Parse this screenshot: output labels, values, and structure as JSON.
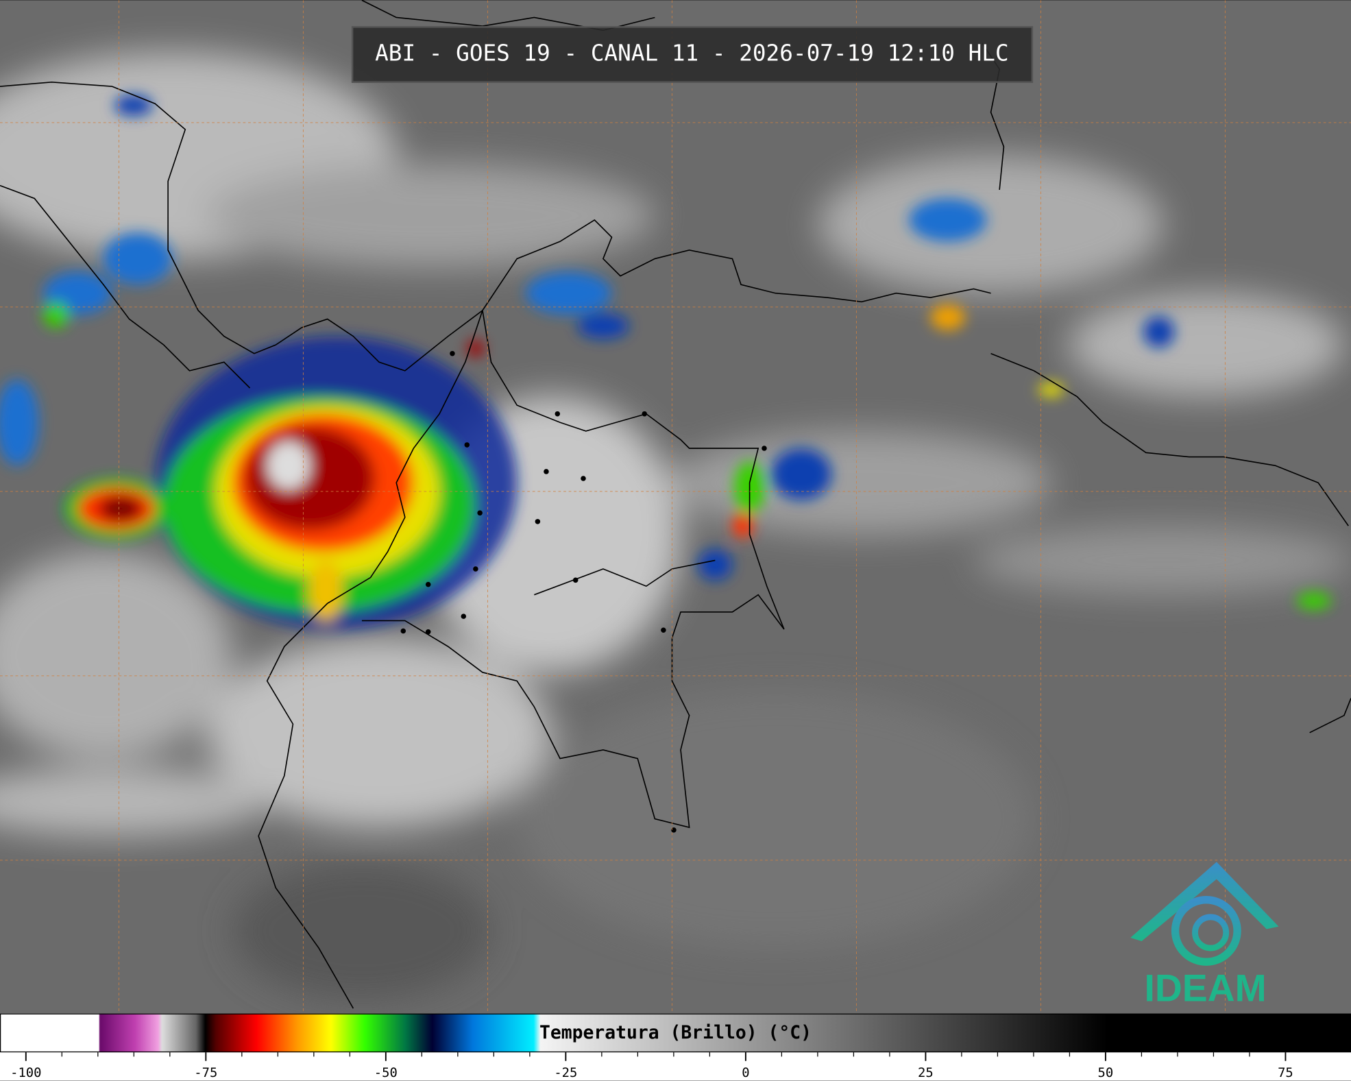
{
  "header": {
    "title": "ABI - GOES 19 - CANAL 11 - 2026-07-19 12:10 HLC"
  },
  "colorbar": {
    "label": "Temperatura (Brillo) (°C)",
    "xlim": [
      -103.6,
      84.1
    ],
    "ticks": [
      -100,
      -75,
      -50,
      -25,
      0,
      25,
      50,
      75
    ]
  },
  "logo": {
    "text": "IDEAM"
  }
}
